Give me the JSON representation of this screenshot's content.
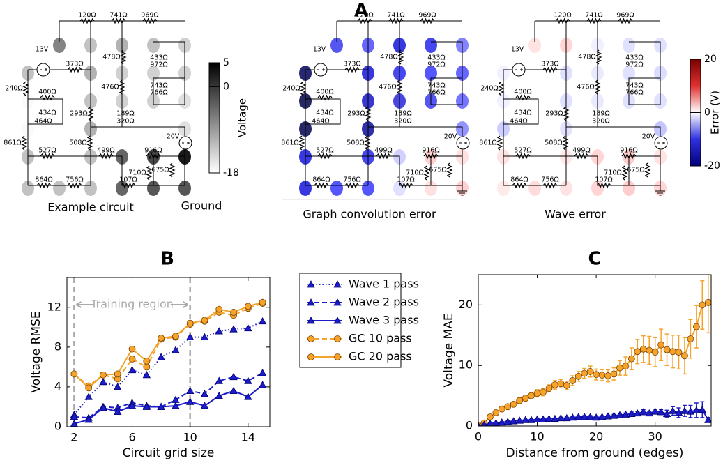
{
  "panel_a": {
    "label": "A",
    "captions": [
      "Example circuit",
      "Graph convolution error",
      "Wave error"
    ],
    "ground": "Ground",
    "sources": [
      "13V",
      "20V"
    ],
    "resistors": [
      "120Ω",
      "741Ω",
      "969Ω",
      "373Ω",
      "478Ω",
      "433Ω",
      "972Ω",
      "240Ω",
      "400Ω",
      "476Ω",
      "743Ω",
      "766Ω",
      "434Ω",
      "464Ω",
      "293Ω",
      "189Ω",
      "320Ω",
      "861Ω",
      "527Ω",
      "508Ω",
      "499Ω",
      "916Ω",
      "710Ω",
      "675Ω",
      "107Ω",
      "864Ω",
      "756Ω"
    ],
    "colorbars": [
      {
        "label": "Voltage",
        "lim": [
          -18,
          5
        ],
        "ticks": [
          5,
          0,
          -18
        ]
      },
      {
        "label": "Error (V)",
        "lim": [
          -20,
          20
        ],
        "ticks": [
          20,
          0,
          -20
        ]
      }
    ]
  },
  "chart_data": [
    {
      "type": "line",
      "title": "B",
      "x_label": "Circuit grid size",
      "y_label": "Voltage RMSE",
      "x": [
        2,
        3,
        4,
        5,
        6,
        7,
        8,
        9,
        10,
        11,
        12,
        13,
        14,
        15
      ],
      "xlim": [
        1.5,
        15.5
      ],
      "xticks": [
        2,
        6,
        10,
        14
      ],
      "ylim": [
        0,
        15
      ],
      "yticks": [
        0,
        4,
        8,
        12
      ],
      "vlines": [
        2,
        10
      ],
      "annotation": "Training region",
      "series": [
        {
          "name": "Wave 1 pass",
          "color": "#1c1cc8",
          "linestyle": "dotted",
          "marker": "triangle",
          "values": [
            1.2,
            3.0,
            4.5,
            4.0,
            5.7,
            5.2,
            7.0,
            7.7,
            9.0,
            9.0,
            9.6,
            9.8,
            9.9,
            10.6
          ]
        },
        {
          "name": "Wave 2 pass",
          "color": "#1c1cc8",
          "linestyle": "dashed",
          "marker": "triangle",
          "values": [
            1.0,
            0.9,
            2.0,
            1.9,
            2.4,
            2.1,
            2.0,
            2.7,
            3.6,
            3.3,
            4.6,
            5.0,
            4.6,
            5.4
          ]
        },
        {
          "name": "Wave 3 pass",
          "color": "#1c1cc8",
          "linestyle": "solid",
          "marker": "triangle",
          "values": [
            0.3,
            0.7,
            1.9,
            1.5,
            2.1,
            2.0,
            2.0,
            2.1,
            2.5,
            2.1,
            3.1,
            3.6,
            3.0,
            4.2
          ]
        },
        {
          "name": "GC 10 pass",
          "color": "#f5a32a",
          "linestyle": "dashed",
          "marker": "circle",
          "values": [
            5.3,
            4.1,
            5.2,
            4.8,
            6.8,
            6.0,
            8.8,
            9.0,
            10.3,
            10.6,
            11.5,
            11.2,
            11.9,
            12.4
          ]
        },
        {
          "name": "GC 20 pass",
          "color": "#f5a32a",
          "linestyle": "solid",
          "marker": "circle",
          "values": [
            5.3,
            3.9,
            5.2,
            5.3,
            7.8,
            6.6,
            8.9,
            9.1,
            10.4,
            10.7,
            11.8,
            11.5,
            12.1,
            12.5
          ]
        }
      ]
    },
    {
      "type": "line",
      "title": "C",
      "x_label": "Distance from ground (edges)",
      "y_label": "Voltage MAE",
      "x": [
        0,
        1,
        2,
        3,
        4,
        5,
        6,
        7,
        8,
        9,
        10,
        11,
        12,
        13,
        14,
        15,
        16,
        17,
        18,
        19,
        20,
        21,
        22,
        23,
        24,
        25,
        26,
        27,
        28,
        29,
        30,
        31,
        32,
        33,
        34,
        35,
        36,
        37,
        38,
        39
      ],
      "xlim": [
        0,
        39.5
      ],
      "xticks": [
        0,
        10,
        20,
        30
      ],
      "ylim": [
        0,
        25
      ],
      "yticks": [
        0,
        10,
        20
      ],
      "series": [
        {
          "color": "#f5a32a",
          "linestyle": "solid",
          "marker": "circle",
          "values": [
            0.1,
            0.5,
            1.5,
            2.2,
            2.8,
            3.2,
            3.6,
            4.2,
            4.6,
            5.0,
            5.4,
            5.6,
            6.2,
            6.8,
            7.0,
            6.7,
            7.5,
            8.2,
            8.7,
            9.0,
            8.5,
            8.4,
            8.3,
            8.6,
            9.6,
            9.9,
            11.1,
            12.3,
            12.7,
            12.5,
            12.2,
            13.4,
            12.6,
            12.3,
            12.2,
            11.6,
            14.4,
            16.4,
            20.0,
            20.4
          ],
          "errors": [
            0.1,
            0.2,
            0.3,
            0.3,
            0.4,
            0.4,
            0.4,
            0.5,
            0.5,
            0.5,
            0.6,
            0.6,
            0.6,
            0.7,
            0.7,
            0.7,
            0.8,
            0.8,
            0.8,
            0.9,
            0.9,
            0.9,
            1.0,
            1.0,
            1.2,
            1.5,
            1.8,
            2.0,
            2.2,
            2.3,
            2.4,
            2.6,
            2.6,
            2.7,
            2.8,
            3.0,
            3.2,
            3.5,
            4.0,
            5.0
          ]
        },
        {
          "color": "#1c1cc8",
          "linestyle": "solid",
          "marker": "triangle",
          "values": [
            0.0,
            0.2,
            0.4,
            0.5,
            0.6,
            0.7,
            0.8,
            0.9,
            1.0,
            1.0,
            1.1,
            1.1,
            1.2,
            1.2,
            1.3,
            1.3,
            1.4,
            1.5,
            1.5,
            1.5,
            1.4,
            1.5,
            1.6,
            1.7,
            1.8,
            1.9,
            2.0,
            2.1,
            2.3,
            2.1,
            2.4,
            2.3,
            2.0,
            2.5,
            2.2,
            2.5,
            2.4,
            2.6,
            2.7,
            1.0
          ],
          "errors": [
            0.05,
            0.1,
            0.1,
            0.1,
            0.1,
            0.1,
            0.1,
            0.1,
            0.1,
            0.1,
            0.1,
            0.1,
            0.1,
            0.1,
            0.1,
            0.15,
            0.15,
            0.15,
            0.2,
            0.2,
            0.2,
            0.2,
            0.2,
            0.2,
            0.25,
            0.25,
            0.3,
            0.3,
            0.4,
            0.3,
            0.4,
            0.4,
            0.6,
            0.7,
            0.8,
            0.9,
            1.0,
            1.2,
            1.3,
            0.4
          ]
        }
      ]
    }
  ]
}
